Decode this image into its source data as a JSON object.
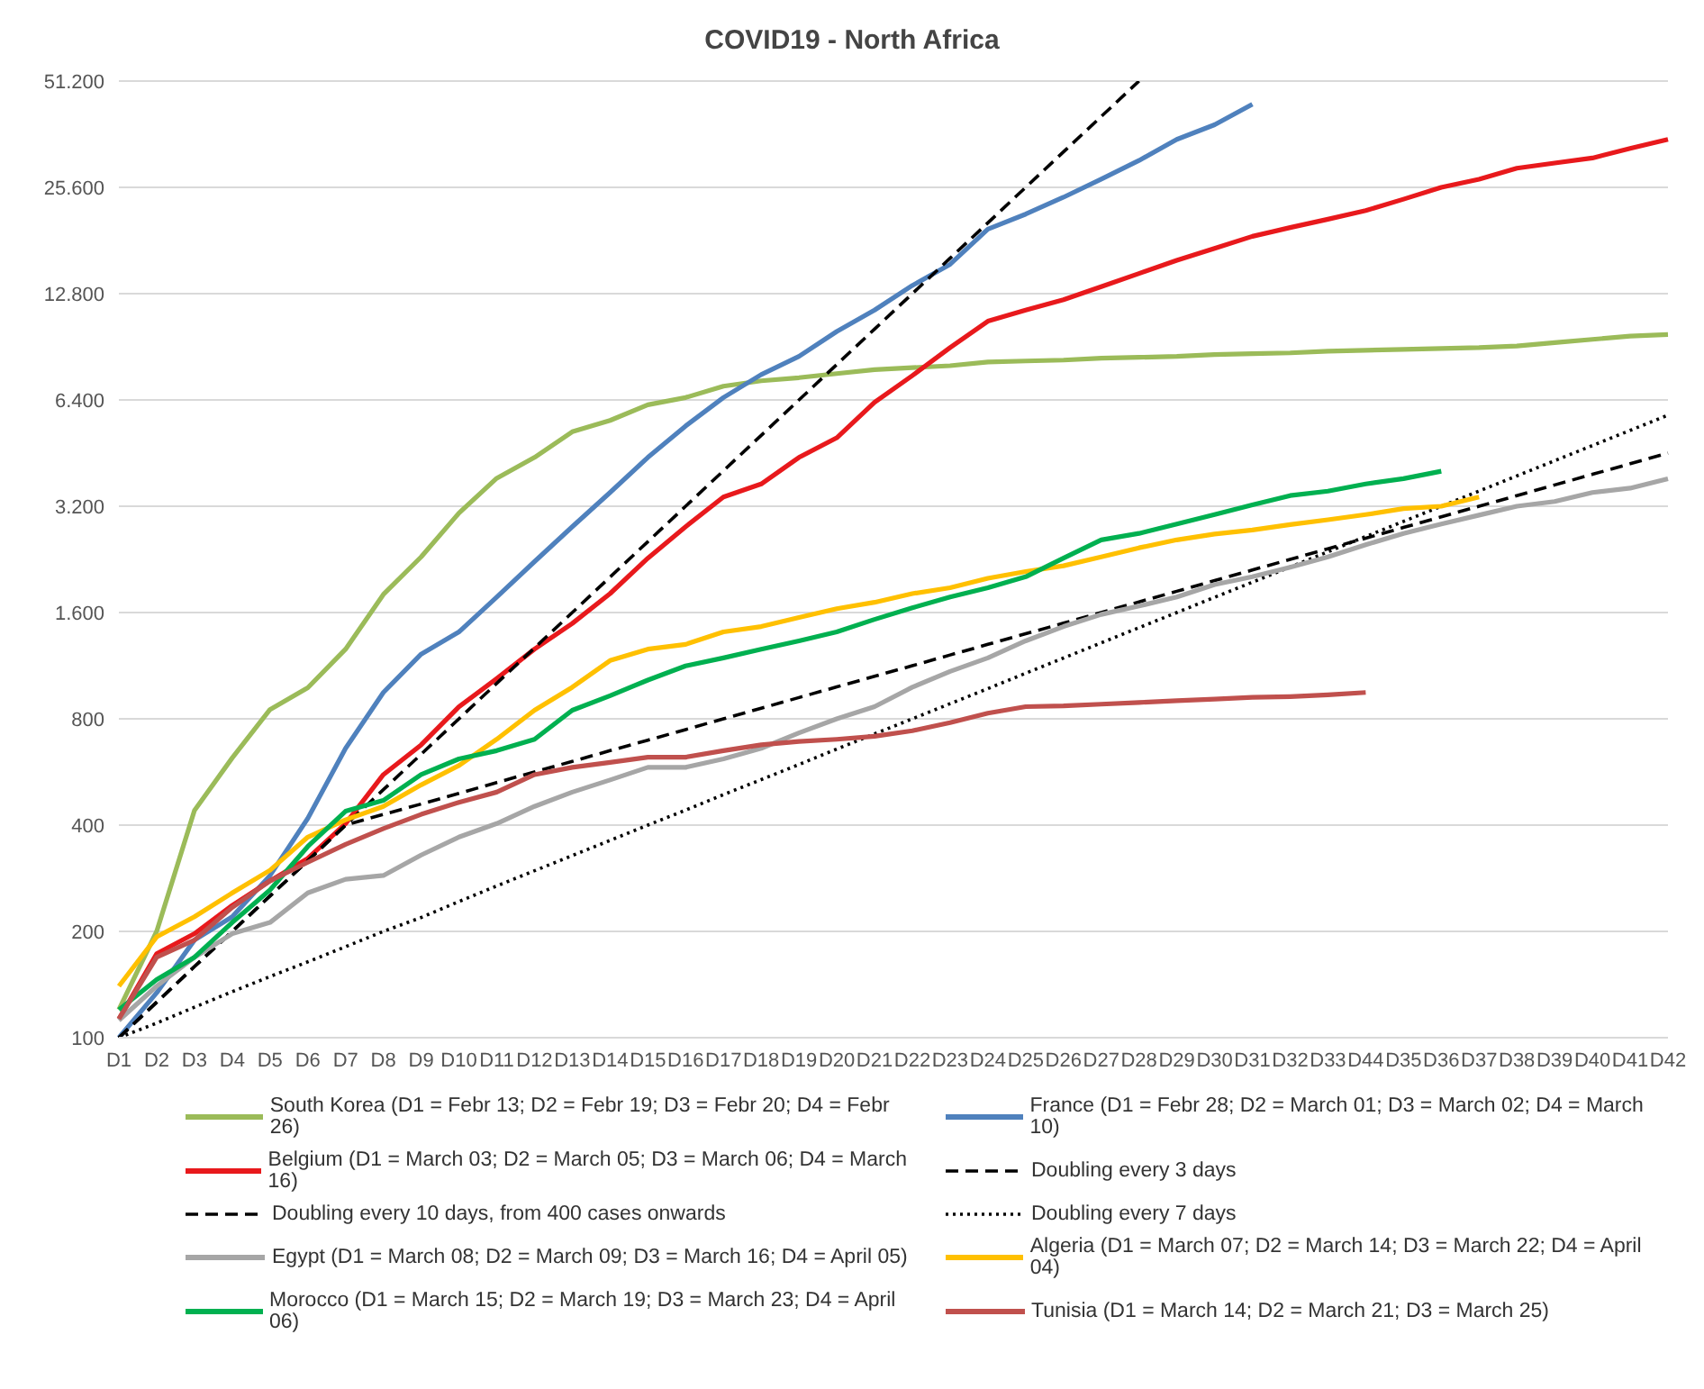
{
  "chart_data": {
    "type": "line",
    "title": "COVID19 - North Africa",
    "categories": [
      "D1",
      "D2",
      "D3",
      "D4",
      "D5",
      "D6",
      "D7",
      "D8",
      "D9",
      "D10",
      "D11",
      "D12",
      "D13",
      "D14",
      "D15",
      "D16",
      "D17",
      "D18",
      "D19",
      "D20",
      "D21",
      "D22",
      "D23",
      "D24",
      "D25",
      "D26",
      "D27",
      "D28",
      "D29",
      "D30",
      "D31",
      "D32",
      "D33",
      "D44",
      "D35",
      "D36",
      "D37",
      "D38",
      "D39",
      "D40",
      "D41",
      "D42"
    ],
    "log": "y",
    "ylim": [
      100,
      51200
    ],
    "yticks": [
      100,
      200,
      400,
      800,
      {
        "value": 1600,
        "label": "1.600"
      },
      {
        "value": 3200,
        "label": "3.200"
      },
      {
        "value": 6400,
        "label": "6.400"
      },
      {
        "value": 12800,
        "label": "12.800"
      },
      {
        "value": 25600,
        "label": "25.600"
      },
      {
        "value": 51200,
        "label": "51.200"
      }
    ],
    "grid": "y",
    "legend": "bottom",
    "marker": "none",
    "series": [
      {
        "name": "South Korea (D1 = Febr 13; D2 = Febr 19; D3 = Febr 20; D4 = Febr 26)",
        "color": "#9bbb59",
        "values": [
          120,
          200,
          440,
          620,
          850,
          980,
          1260,
          1800,
          2300,
          3060,
          3840,
          4400,
          5200,
          5600,
          6200,
          6500,
          7000,
          7250,
          7400,
          7600,
          7800,
          7900,
          8000,
          8200,
          8250,
          8300,
          8400,
          8450,
          8500,
          8600,
          8650,
          8700,
          8800,
          8850,
          8900,
          8950,
          9000,
          9100,
          9300,
          9500,
          9700,
          9800
        ]
      },
      {
        "name": "France (D1 = Febr 28; D2 = March 01; D3 = March 02; D4 = March 10)",
        "color": "#4f81bd",
        "values": [
          100,
          134,
          189,
          220,
          288,
          418,
          660,
          950,
          1220,
          1410,
          1770,
          2230,
          2800,
          3500,
          4400,
          5400,
          6500,
          7550,
          8500,
          10000,
          11500,
          13500,
          15500,
          19500,
          21500,
          24000,
          27000,
          30500,
          35000,
          38500,
          44000,
          null,
          null,
          null,
          null,
          null,
          null,
          null,
          null,
          null,
          null,
          null
        ]
      },
      {
        "name": "Belgium (D1 = March 03; D2 = March 05; D3 = March 06; D4 = March 16)",
        "color": "#e8191c",
        "values": [
          113,
          173,
          197,
          237,
          278,
          322,
          404,
          556,
          675,
          865,
          1040,
          1260,
          1490,
          1810,
          2280,
          2800,
          3400,
          3700,
          4400,
          5000,
          6300,
          7500,
          9000,
          10700,
          11500,
          12300,
          13400,
          14600,
          15900,
          17200,
          18600,
          19700,
          20800,
          22000,
          23700,
          25600,
          27000,
          29000,
          30000,
          31000,
          33000,
          35000
        ]
      },
      {
        "name": "Doubling every 3 days",
        "color": "#000000",
        "line_style": "dashed",
        "values": [
          100,
          126,
          159,
          200,
          252,
          317,
          400,
          504,
          635,
          800,
          1008,
          1270,
          1600,
          2016,
          2540,
          3200,
          4032,
          5080,
          6400,
          8063,
          10159,
          12800,
          16127,
          20319,
          25600,
          32254,
          40637,
          51200,
          null,
          null,
          null,
          null,
          null,
          null,
          null,
          null,
          null,
          null,
          null,
          null,
          null,
          null
        ]
      },
      {
        "name": "Doubling every 10 days, from 400 cases onwards",
        "color": "#000000",
        "line_style": "dashed",
        "values": [
          100,
          126,
          159,
          200,
          252,
          317,
          400,
          429,
          459,
          492,
          528,
          566,
          606,
          650,
          696,
          746,
          800,
          857,
          919,
          985,
          1056,
          1131,
          1213,
          1300,
          1393,
          1493,
          1600,
          1715,
          1838,
          1970,
          2111,
          2263,
          2425,
          2599,
          2786,
          2986,
          3200,
          3430,
          3676,
          3940,
          4222,
          4525
        ]
      },
      {
        "name": "Doubling every 7 days",
        "color": "#000000",
        "line_style": "dotted",
        "values": [
          100,
          110,
          122,
          135,
          149,
          164,
          181,
          200,
          219,
          243,
          269,
          297,
          328,
          362,
          400,
          441,
          488,
          538,
          594,
          657,
          725,
          800,
          883,
          974,
          1077,
          1189,
          1313,
          1450,
          1600,
          1767,
          1950,
          2153,
          2378,
          2626,
          2899,
          3200,
          3533,
          3900,
          4306,
          4754,
          5249,
          5796
        ]
      },
      {
        "name": "Egypt (D1 = March 08; D2 = March 09; D3 = March 16; D4 = April 05)",
        "color": "#a6a6a6",
        "values": [
          112,
          140,
          169,
          197,
          212,
          257,
          281,
          288,
          329,
          370,
          404,
          452,
          496,
          537,
          583,
          583,
          616,
          660,
          730,
          800,
          866,
          983,
          1090,
          1190,
          1330,
          1460,
          1580,
          1670,
          1770,
          1920,
          2020,
          2150,
          2300,
          2490,
          2680,
          2850,
          3020,
          3200,
          3300,
          3500,
          3600,
          3830
        ]
      },
      {
        "name": "Algeria (D1 = March 07; D2 = March 14; D3 = March 22; D4 = April 04)",
        "color": "#ffc000",
        "values": [
          140,
          193,
          220,
          257,
          298,
          370,
          414,
          452,
          520,
          590,
          700,
          846,
          983,
          1170,
          1260,
          1300,
          1410,
          1460,
          1550,
          1640,
          1710,
          1810,
          1880,
          2000,
          2090,
          2170,
          2300,
          2440,
          2570,
          2670,
          2740,
          2840,
          2930,
          3030,
          3150,
          3200,
          3400,
          null,
          null,
          null,
          null,
          null
        ]
      },
      {
        "name": "Morocco (D1 = March 15; D2 = March 19; D3 = March 23; D4 = April 06)",
        "color": "#00b050",
        "values": [
          120,
          146,
          169,
          212,
          262,
          348,
          438,
          470,
          556,
          616,
          650,
          700,
          846,
          930,
          1030,
          1130,
          1190,
          1260,
          1330,
          1410,
          1530,
          1650,
          1770,
          1880,
          2020,
          2280,
          2570,
          2680,
          2850,
          3030,
          3230,
          3430,
          3530,
          3700,
          3830,
          4020,
          null,
          null,
          null,
          null,
          null,
          null
        ]
      },
      {
        "name": "Tunisia (D1 = March 14; D2 = March 21; D3 = March 25)",
        "color": "#c0504d",
        "values": [
          113,
          169,
          189,
          234,
          278,
          314,
          353,
          391,
          429,
          464,
          496,
          556,
          583,
          602,
          623,
          623,
          650,
          675,
          690,
          700,
          714,
          740,
          780,
          830,
          866,
          870,
          880,
          890,
          900,
          910,
          920,
          925,
          935,
          950,
          null,
          null,
          null,
          null,
          null,
          null,
          null,
          null
        ]
      }
    ]
  }
}
